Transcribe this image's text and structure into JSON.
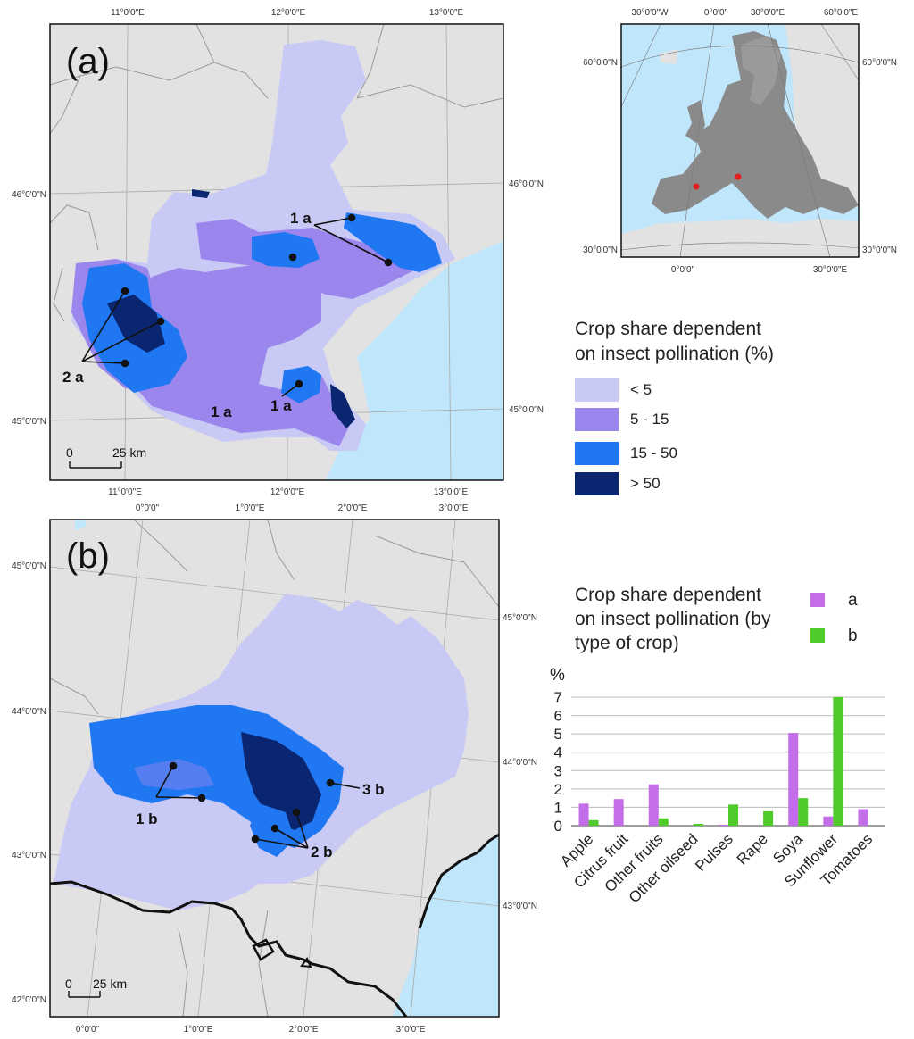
{
  "panel_a": {
    "label": "(a)",
    "coords_top": [
      "11°0'0\"E",
      "12°0'0\"E",
      "13°0'0\"E"
    ],
    "coords_bottom": [
      "11°0'0\"E",
      "12°0'0\"E",
      "13°0'0\"E"
    ],
    "coords_left": [
      "46°0'0\"N",
      "45°0'0\"N"
    ],
    "coords_right": [
      "46°0'0\"N",
      "45°0'0\"N"
    ],
    "annotations": [
      "1 a",
      "1 a",
      "1 a",
      "2 a"
    ],
    "scalebar": {
      "zero": "0",
      "length": "25 km"
    }
  },
  "panel_b": {
    "label": "(b)",
    "coords_top": [
      "0°0'0\"",
      "1°0'0\"E",
      "2°0'0\"E",
      "3°0'0\"E"
    ],
    "coords_bottom": [
      "0°0'0\"",
      "1°0'0\"E",
      "2°0'0\"E",
      "3°0'0\"E"
    ],
    "coords_left": [
      "45°0'0\"N",
      "44°0'0\"N",
      "43°0'0\"N",
      "42°0'0\"N"
    ],
    "coords_right": [
      "45°0'0\"N",
      "44°0'0\"N",
      "43°0'0\"N"
    ],
    "annotations": [
      "1 b",
      "2 b",
      "3 b"
    ],
    "scalebar": {
      "zero": "0",
      "length": "25 km"
    }
  },
  "inset": {
    "coords_top": [
      "30°0'0\"W",
      "0°0'0\"",
      "30°0'0\"E",
      "60°0'0\"E"
    ],
    "coords_bottom": [
      "0°0'0\"",
      "30°0'0\"E"
    ],
    "coords_left": [
      "60°0'0\"N",
      "30°0'0\"N"
    ],
    "coords_right": [
      "60°0'0\"N",
      "30°0'0\"N"
    ]
  },
  "legend": {
    "title_line1": "Crop share dependent",
    "title_line2": "on insect pollination (%)",
    "items": [
      {
        "label": "< 5",
        "color": "#c9c9f5"
      },
      {
        "label": "5 - 15",
        "color": "#9a86ec"
      },
      {
        "label": "15 - 50",
        "color": "#1f77f2"
      },
      {
        "label": "> 50",
        "color": "#0a2670"
      }
    ]
  },
  "colors": {
    "land": "#e2e2e2",
    "sea": "#bfe6fb",
    "series_a": "#c36ee8",
    "series_b": "#4fcb2a"
  },
  "chart_data": {
    "type": "bar",
    "title": "Crop share dependent on insect pollination (by type of crop)",
    "title_lines": [
      "Crop share dependent",
      "on insect pollination (by",
      "type of crop)"
    ],
    "ylabel": "%",
    "ylim": [
      0,
      7
    ],
    "yticks": [
      "0",
      "1",
      "2",
      "3",
      "4",
      "5",
      "6",
      "7"
    ],
    "categories": [
      "Apple",
      "Citrus fruit",
      "Other fruits",
      "Other oilseed",
      "Pulses",
      "Rape",
      "Soya",
      "Sunflower",
      "Tomatoes"
    ],
    "series": [
      {
        "name": "a",
        "values": [
          1.2,
          1.45,
          2.25,
          0.0,
          0.05,
          0.0,
          5.05,
          0.5,
          0.9
        ]
      },
      {
        "name": "b",
        "values": [
          0.3,
          0.0,
          0.4,
          0.1,
          1.15,
          0.78,
          1.5,
          7.0,
          0.0
        ]
      }
    ],
    "grid": true,
    "legend_position": "top-right"
  }
}
